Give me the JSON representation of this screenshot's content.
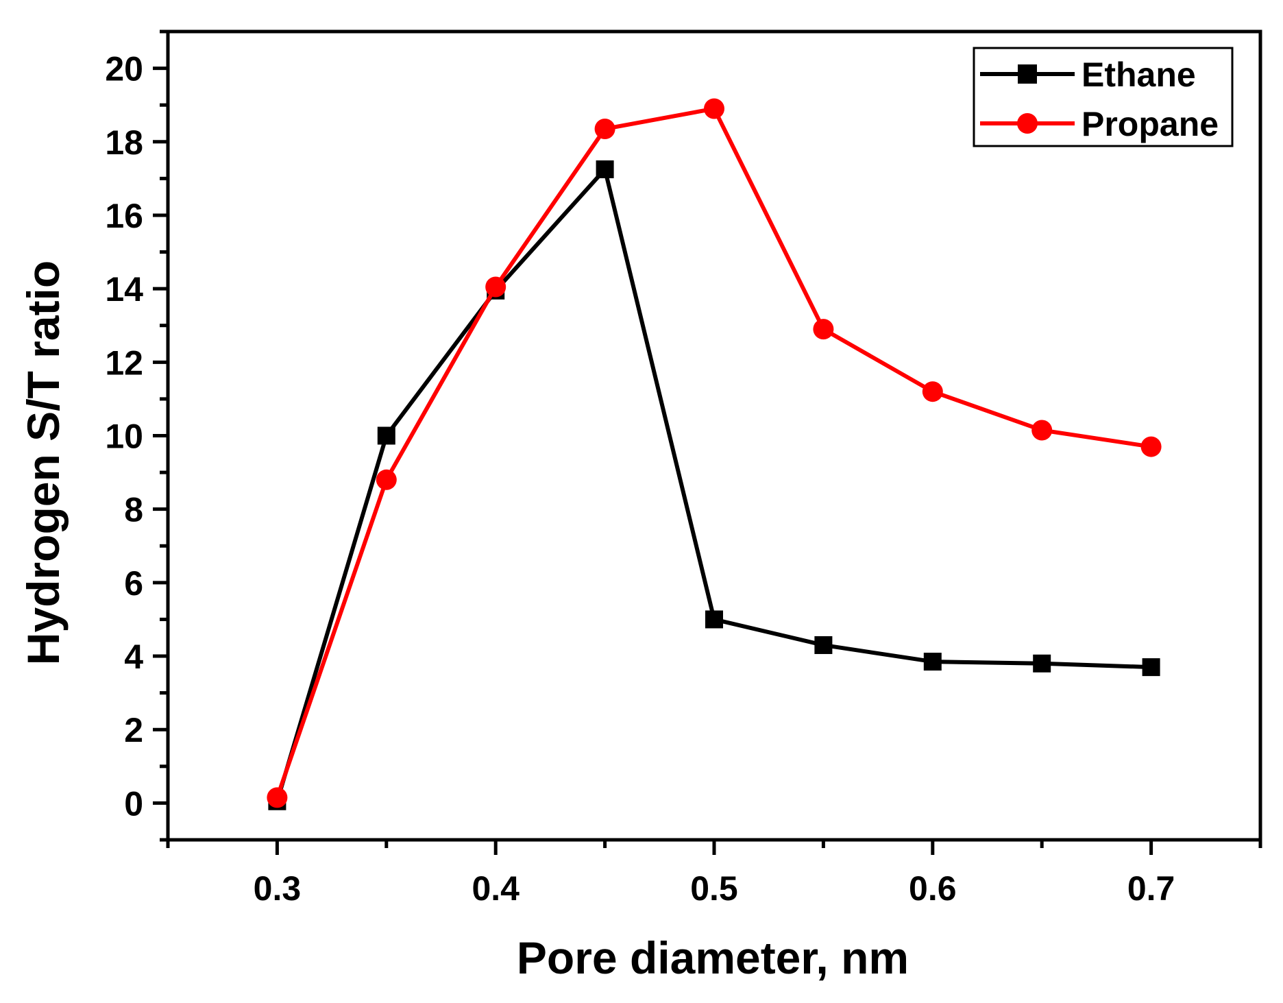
{
  "chart_data": {
    "type": "line",
    "title": "",
    "xlabel": "Pore diameter, nm",
    "ylabel": "Hydrogen S/T ratio",
    "xlim": [
      0.25,
      0.75
    ],
    "ylim": [
      -1,
      21
    ],
    "x": [
      0.3,
      0.35,
      0.4,
      0.45,
      0.5,
      0.55,
      0.6,
      0.65,
      0.7
    ],
    "xticks": [
      0.3,
      0.4,
      0.5,
      0.6,
      0.7
    ],
    "xtick_labels": [
      "0.3",
      "0.4",
      "0.5",
      "0.6",
      "0.7"
    ],
    "yticks": [
      0,
      2,
      4,
      6,
      8,
      10,
      12,
      14,
      16,
      18,
      20
    ],
    "ytick_labels": [
      "0",
      "2",
      "4",
      "6",
      "8",
      "10",
      "12",
      "14",
      "16",
      "18",
      "20"
    ],
    "grid": false,
    "legend_position": "top-right",
    "series": [
      {
        "name": "Ethane",
        "marker": "square",
        "color": "#000000",
        "values": [
          0.05,
          10.0,
          13.95,
          17.25,
          5.0,
          4.3,
          3.85,
          3.8,
          3.7
        ]
      },
      {
        "name": "Propane",
        "marker": "circle",
        "color": "#ff0000",
        "values": [
          0.15,
          8.8,
          14.05,
          18.35,
          18.9,
          12.9,
          11.2,
          10.15,
          9.7
        ]
      }
    ]
  }
}
